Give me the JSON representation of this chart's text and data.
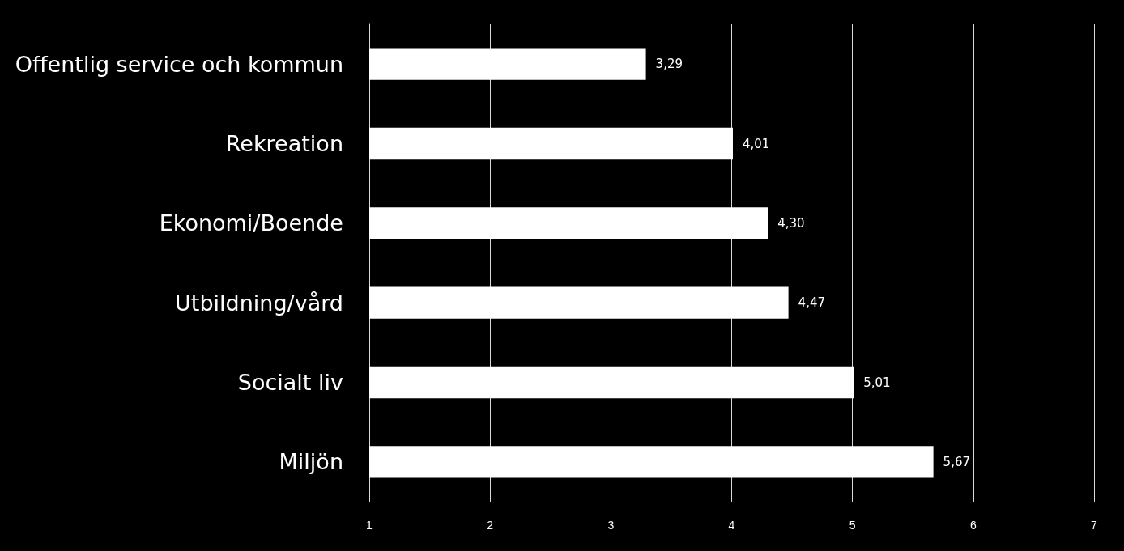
{
  "chart_data": {
    "type": "bar",
    "orientation": "horizontal",
    "categories": [
      "Offentlig service och kommun",
      "Rekreation",
      "Ekonomi/Boende",
      "Utbildning/vård",
      "Socialt liv",
      "Miljön"
    ],
    "values": [
      3.29,
      4.01,
      4.3,
      4.47,
      5.01,
      5.67
    ],
    "value_labels": [
      "3,29",
      "4,01",
      "4,30",
      "4,47",
      "5,01",
      "5,67"
    ],
    "color": "#ffffff",
    "xlim": [
      1,
      7
    ],
    "xticks": [
      1,
      2,
      3,
      4,
      5,
      6,
      7
    ],
    "grid": "x"
  }
}
